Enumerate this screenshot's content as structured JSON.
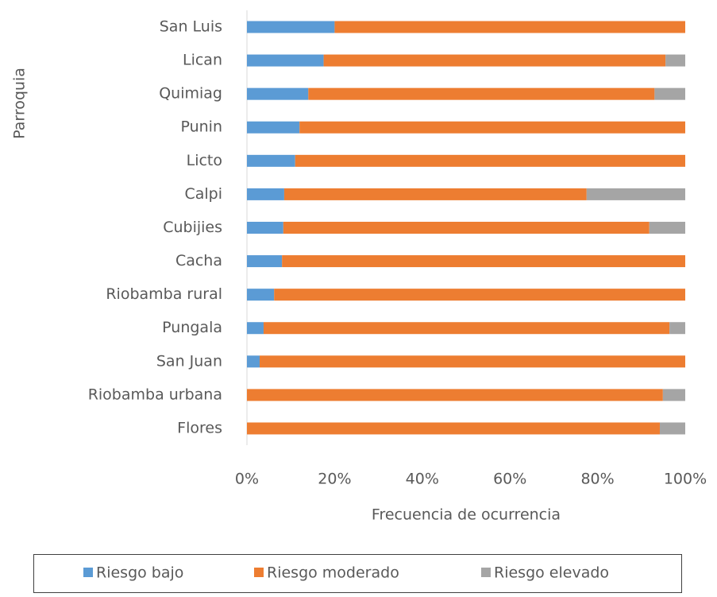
{
  "chart_data": {
    "type": "stacked_bar_horizontal",
    "y_axis_label": "Parroquia",
    "x_axis_label": "Frecuencia de ocurrencia",
    "categories": [
      "San Luis",
      "Lican",
      "Quimiag",
      "Punin",
      "Licto",
      "Calpi",
      "Cubijies",
      "Cacha",
      "Riobamba rural",
      "Pungala",
      "San Juan",
      "Riobamba urbana",
      "Flores"
    ],
    "series": [
      {
        "name": "Riesgo bajo",
        "color": "#5b9bd5",
        "values": [
          20,
          17.5,
          14,
          12,
          11,
          8.5,
          8.3,
          8,
          6.2,
          3.8,
          2.9,
          0,
          0
        ]
      },
      {
        "name": "Riesgo moderado",
        "color": "#ed7d31",
        "values": [
          80,
          78,
          79,
          88,
          89,
          69,
          83.5,
          92,
          93.8,
          92.6,
          97.1,
          94.9,
          94.2
        ]
      },
      {
        "name": "Riesgo elevado",
        "color": "#a5a5a5",
        "values": [
          0,
          4.5,
          7,
          0,
          0,
          22.5,
          8.2,
          0,
          0,
          3.6,
          0,
          5.1,
          5.8
        ]
      }
    ],
    "xlim": [
      0,
      100
    ],
    "xticks": [
      {
        "value": 0,
        "label": "0%"
      },
      {
        "value": 20,
        "label": "20%"
      },
      {
        "value": 40,
        "label": "40%"
      },
      {
        "value": 60,
        "label": "60%"
      },
      {
        "value": 80,
        "label": "80%"
      },
      {
        "value": 100,
        "label": "100%"
      }
    ],
    "legend": "bottom"
  }
}
